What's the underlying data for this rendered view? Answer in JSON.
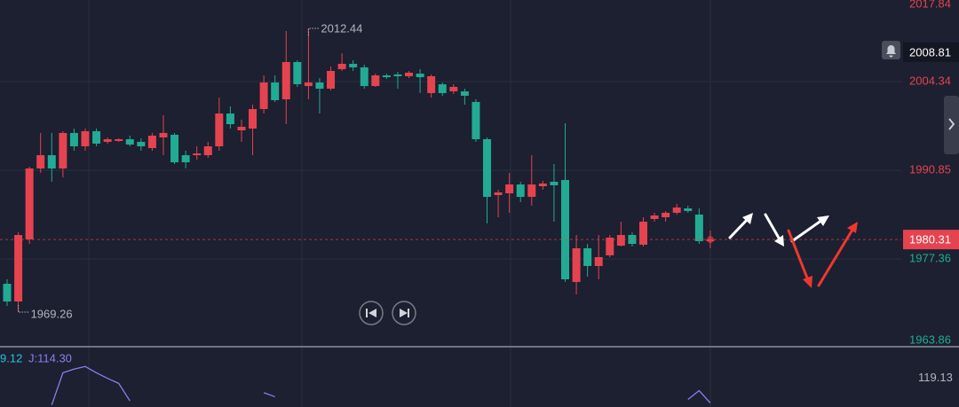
{
  "chart_data": [
    {
      "type": "candlestick",
      "open": [
        1973.58,
        1970.88,
        1980.33,
        1991.12,
        1993.14,
        1991.12,
        1996.52,
        1994.49,
        1996.79,
        1995.17,
        1995.3,
        1995.57,
        1995.17,
        1994.22,
        1995.84,
        1996.25,
        1993.14,
        1993.14,
        1993.14,
        1994.49,
        1999.48,
        1996.92,
        1997.19,
        2000.16,
        2004.2,
        2001.64,
        2007.31,
        2003.66,
        2004.2,
        2003.26,
        2006.23,
        2007.04,
        2006.5,
        2003.66,
        2005.28,
        2005.42,
        2005.15,
        2005.55,
        2002.59,
        2003.93,
        2002.85,
        2002.85,
        2001.24,
        1995.57,
        1987.07,
        1987.34,
        1988.69,
        1986.8,
        1988.42,
        1989.1,
        1989.37,
        1973.85,
        1978.98,
        1976.28,
        1977.9,
        1979.38,
        1981.0,
        1979.52,
        1983.43,
        1983.7,
        1984.38,
        1985.05,
        1984.11,
        1980.06
      ],
      "high": [
        1974.26,
        1981.41,
        1991.39,
        1996.52,
        1996.52,
        1996.79,
        1997.19,
        1997.19,
        1997.19,
        1995.84,
        1995.7,
        1996.11,
        1995.7,
        1996.52,
        1999.21,
        1996.52,
        1993.82,
        1994.49,
        1995.17,
        2001.91,
        2000.56,
        1998.54,
        2000.83,
        2005.28,
        2005.28,
        2012.03,
        2007.58,
        2012.44,
        2004.88,
        2006.63,
        2008.66,
        2007.58,
        2006.9,
        2005.55,
        2005.55,
        2005.82,
        2005.96,
        2006.23,
        2005.42,
        2004.2,
        2003.93,
        2003.26,
        2001.64,
        1995.84,
        1987.9,
        1990.45,
        1989.1,
        1993.14,
        1989.23,
        1991.79,
        1998.0,
        1981.0,
        1979.65,
        1981.0,
        1981.0,
        1983.03,
        1981.41,
        1983.7,
        1984.38,
        1984.65,
        1985.72,
        1985.45,
        1985.05,
        1981.68
      ],
      "low": [
        1970.21,
        1969.26,
        1979.65,
        1990.45,
        1989.1,
        1989.77,
        1993.82,
        1993.82,
        1994.49,
        1994.9,
        1995.17,
        1994.49,
        1993.82,
        1993.82,
        1993.14,
        1991.79,
        1991.12,
        1992.47,
        1992.74,
        1993.82,
        1997.19,
        1995.17,
        1993.14,
        1999.48,
        2001.24,
        1997.86,
        2003.53,
        2001.64,
        1999.48,
        2002.99,
        2005.96,
        2005.96,
        2003.26,
        2003.53,
        2004.74,
        2003.26,
        2004.88,
        2002.59,
        2001.91,
        2002.18,
        2002.45,
        2000.83,
        1995.17,
        1982.76,
        1983.7,
        1984.38,
        1986.0,
        1985.45,
        1987.9,
        1983.03,
        1973.85,
        1971.96,
        1974.66,
        1974.26,
        1977.63,
        1979.25,
        1979.25,
        1979.25,
        1983.03,
        1983.03,
        1984.11,
        1984.38,
        1979.65,
        1978.98
      ],
      "close": [
        1970.88,
        1981.0,
        1991.12,
        1993.14,
        1991.12,
        1996.52,
        1994.49,
        1996.79,
        1994.9,
        1995.57,
        1995.57,
        1994.76,
        1994.49,
        1996.11,
        1996.52,
        1992.06,
        1992.06,
        1993.41,
        1994.49,
        1999.48,
        1997.86,
        1997.46,
        2000.16,
        2004.2,
        2001.51,
        2007.31,
        2003.94,
        2004.2,
        2003.26,
        2005.96,
        2007.04,
        2006.5,
        2003.66,
        2005.28,
        2005.01,
        2005.15,
        2005.69,
        2005.01,
        2005.15,
        2002.59,
        2003.53,
        2002.18,
        1995.57,
        1986.8,
        1987.48,
        1988.69,
        1986.8,
        1988.69,
        1988.83,
        1988.56,
        1974.26,
        1978.98,
        1976.28,
        1977.63,
        1980.6,
        1981.0,
        1979.65,
        1983.03,
        1983.97,
        1984.38,
        1985.18,
        1984.65,
        1980.06,
        1980.31
      ],
      "up_color": "#e5434f",
      "down_color": "#22ab94",
      "ylim": [
        1964.14,
        2016.75
      ],
      "yticks": [
        2017.84,
        2004.34,
        1990.85,
        1977.36,
        1963.86
      ],
      "alert_price": 2008.81
    },
    {
      "type": "line",
      "legend": [
        "9.12",
        "J:114.30"
      ],
      "series": [
        {
          "name": "J",
          "color": "#8e7cf0",
          "values": [
            null,
            null,
            null,
            null,
            106,
            121.7,
            123.5,
            124.8,
            121.7,
            119,
            116.5,
            108,
            null,
            null,
            null,
            null,
            null,
            null,
            null,
            null,
            null,
            null,
            null,
            112,
            110,
            null,
            null,
            null,
            null,
            null,
            null,
            null,
            null,
            null,
            null,
            null,
            null,
            null,
            null,
            null,
            null,
            null,
            null,
            null,
            null,
            null,
            null,
            null,
            null,
            null,
            null,
            null,
            null,
            null,
            null,
            null,
            null,
            null,
            null,
            null,
            null,
            108.7,
            113,
            107
          ]
        }
      ],
      "ylim": [
        105,
        134
      ],
      "yticks": [
        119.13
      ]
    }
  ]
}
